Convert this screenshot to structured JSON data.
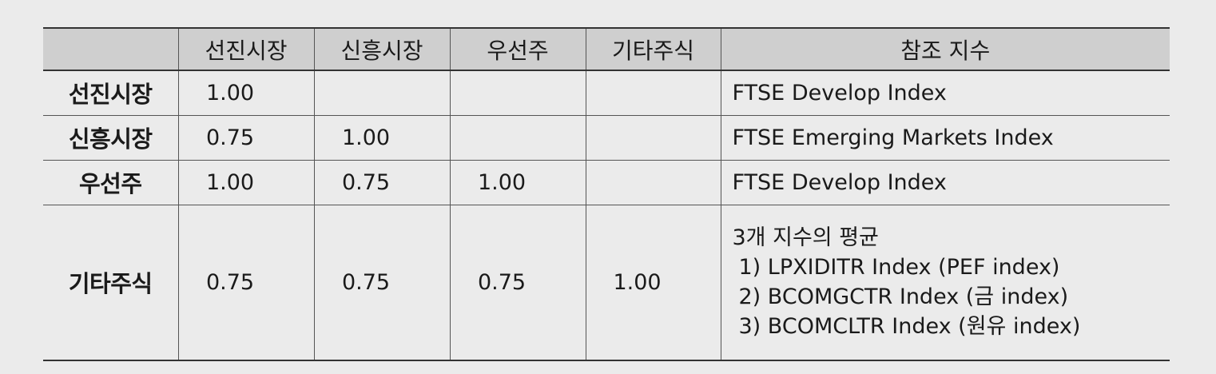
{
  "table": {
    "headers": [
      "",
      "선진시장",
      "신흥시장",
      "우선주",
      "기타주식",
      "참조 지수"
    ],
    "rows": [
      {
        "label": "선진시장",
        "values": [
          "1.00",
          "",
          "",
          ""
        ],
        "reference": [
          "FTSE Develop Index"
        ]
      },
      {
        "label": "신흥시장",
        "values": [
          "0.75",
          "1.00",
          "",
          ""
        ],
        "reference": [
          "FTSE Emerging Markets Index"
        ]
      },
      {
        "label": "우선주",
        "values": [
          "1.00",
          "0.75",
          "1.00",
          ""
        ],
        "reference": [
          "FTSE Develop Index"
        ]
      },
      {
        "label": "기타주식",
        "values": [
          "0.75",
          "0.75",
          "0.75",
          "1.00"
        ],
        "reference": [
          "3개 지수의 평균",
          "1) LPXIDITR Index (PEF index)",
          "2) BCOMGCTR Index (금 index)",
          "3) BCOMCLTR Index (원유 index)"
        ]
      }
    ]
  }
}
